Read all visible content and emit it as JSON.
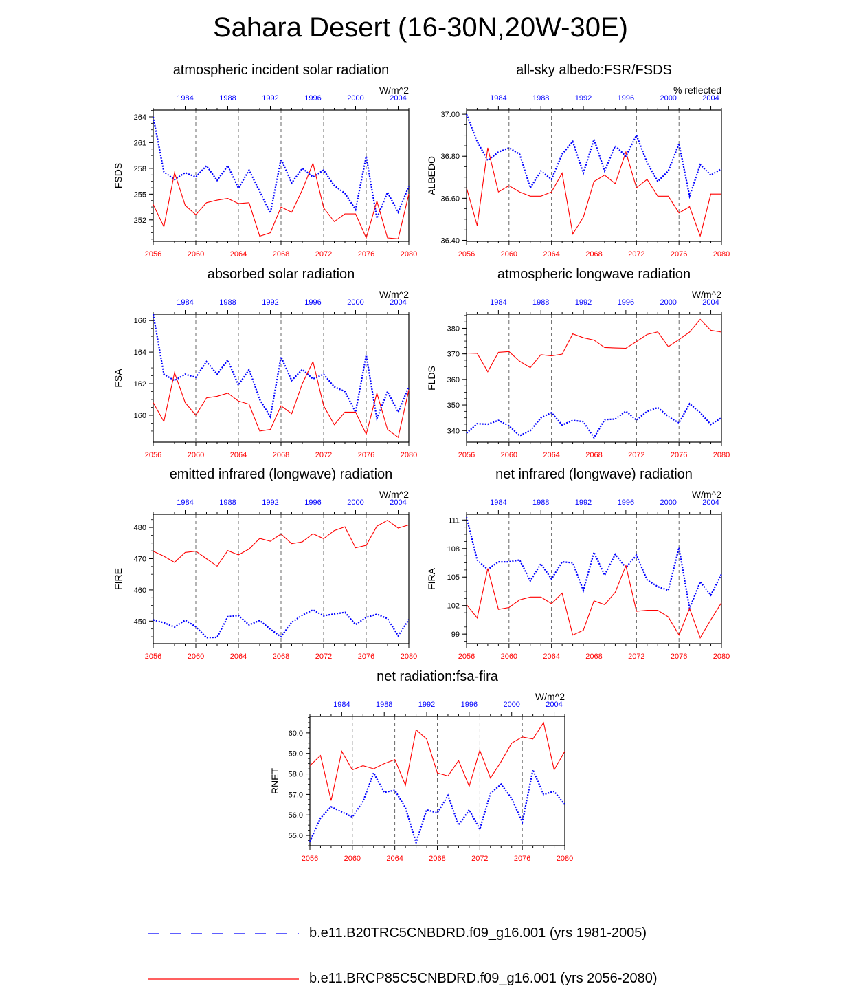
{
  "title": "Sahara Desert (16-30N,20W-30E)",
  "colors": {
    "hist": "#0000ff",
    "future": "#ff0000",
    "grid": "#444444"
  },
  "x_axis": {
    "top_ticks": [
      "1984",
      "1988",
      "1992",
      "1996",
      "2000",
      "2004"
    ],
    "top_years": [
      1984,
      1988,
      1992,
      1996,
      2000,
      2004
    ],
    "top_range": [
      1981,
      2005
    ],
    "bottom_ticks": [
      "2056",
      "2060",
      "2064",
      "2068",
      "2072",
      "2076",
      "2080"
    ],
    "bottom_years": [
      2056,
      2060,
      2064,
      2068,
      2072,
      2076,
      2080
    ],
    "bottom_range": [
      2056,
      2080
    ],
    "dashed_lines": [
      2060,
      2064,
      2068,
      2072,
      2076
    ]
  },
  "legend": [
    {
      "label": "b.e11.B20TRC5CNBDRD.f09_g16.001 (yrs 1981-2005)",
      "style": "dashed",
      "color": "#0000ff"
    },
    {
      "label": "b.e11.BRCP85C5CNBDRD.f09_g16.001 (yrs 2056-2080)",
      "style": "solid",
      "color": "#ff0000"
    }
  ],
  "chart_data": [
    {
      "type": "line",
      "title": "atmospheric incident solar radiation",
      "ylabel": "FSDS",
      "units": "W/m^2",
      "ylim": [
        249.5,
        264.8
      ],
      "yticks": [
        252,
        255,
        258,
        261,
        264
      ],
      "yticklabels": [
        "252",
        "255",
        "258",
        "261",
        "264"
      ],
      "series": [
        {
          "name": "b.e11.B20TRC5CNBDRD.f09_g16.001 (yrs 1981-2005)",
          "values": [
            264.0,
            257.6,
            256.7,
            257.5,
            257.0,
            258.3,
            256.6,
            258.3,
            255.7,
            257.8,
            255.3,
            252.8,
            259.1,
            256.3,
            258.0,
            257.0,
            257.8,
            256.0,
            255.1,
            253.2,
            259.4,
            252.2,
            255.2,
            252.9,
            255.9
          ]
        },
        {
          "name": "b.e11.BRCP85C5CNBDRD.f09_g16.001 (yrs 2056-2080)",
          "values": [
            253.8,
            251.2,
            257.5,
            253.7,
            252.6,
            254.0,
            254.3,
            254.5,
            253.9,
            254.0,
            250.1,
            250.5,
            253.5,
            252.9,
            255.5,
            258.6,
            253.4,
            251.8,
            252.7,
            252.7,
            249.9,
            254.2,
            249.9,
            249.8,
            255.0
          ]
        }
      ]
    },
    {
      "type": "line",
      "title": "all-sky albedo:FSR/FSDS",
      "ylabel": "ALBEDO",
      "units": "% reflected",
      "ylim": [
        36.395,
        37.02
      ],
      "yticks": [
        36.4,
        36.6,
        36.8,
        37.0
      ],
      "yticklabels": [
        "36.40",
        "36.60",
        "36.80",
        "37.00"
      ],
      "series": [
        {
          "name": "b.e11.B20TRC5CNBDRD.f09_g16.001 (yrs 1981-2005)",
          "values": [
            37.0,
            36.87,
            36.78,
            36.82,
            36.84,
            36.81,
            36.65,
            36.73,
            36.69,
            36.81,
            36.87,
            36.72,
            36.88,
            36.73,
            36.85,
            36.8,
            36.9,
            36.77,
            36.68,
            36.73,
            36.86,
            36.61,
            36.76,
            36.71,
            36.74
          ]
        },
        {
          "name": "b.e11.BRCP85C5CNBDRD.f09_g16.001 (yrs 2056-2080)",
          "values": [
            36.65,
            36.47,
            36.84,
            36.63,
            36.66,
            36.63,
            36.61,
            36.61,
            36.63,
            36.72,
            36.43,
            36.51,
            36.68,
            36.71,
            36.67,
            36.82,
            36.65,
            36.69,
            36.61,
            36.61,
            36.53,
            36.56,
            36.42,
            36.62,
            36.62
          ]
        }
      ]
    },
    {
      "type": "line",
      "title": "absorbed solar radiation",
      "ylabel": "FSA",
      "units": "W/m^2",
      "ylim": [
        158.3,
        166.4
      ],
      "yticks": [
        160,
        162,
        164,
        166
      ],
      "yticklabels": [
        "160",
        "162",
        "164",
        "166"
      ],
      "series": [
        {
          "name": "b.e11.B20TRC5CNBDRD.f09_g16.001 (yrs 1981-2005)",
          "values": [
            166.4,
            162.6,
            162.2,
            162.6,
            162.4,
            163.4,
            162.6,
            163.5,
            161.9,
            162.9,
            161.0,
            159.9,
            163.7,
            162.2,
            162.9,
            162.3,
            162.6,
            161.8,
            161.5,
            160.2,
            163.8,
            159.8,
            161.5,
            160.2,
            161.8
          ]
        },
        {
          "name": "b.e11.BRCP85C5CNBDRD.f09_g16.001 (yrs 2056-2080)",
          "values": [
            160.8,
            159.6,
            162.7,
            160.8,
            160.0,
            161.1,
            161.2,
            161.4,
            160.9,
            160.7,
            159.0,
            159.1,
            160.6,
            160.1,
            162.0,
            163.4,
            160.6,
            159.4,
            160.2,
            160.2,
            158.8,
            161.4,
            159.1,
            158.6,
            161.6
          ]
        }
      ]
    },
    {
      "type": "line",
      "title": "atmospheric longwave radiation",
      "ylabel": "FLDS",
      "units": "W/m^2",
      "ylim": [
        335.5,
        385.5
      ],
      "yticks": [
        340,
        350,
        360,
        370,
        380
      ],
      "yticklabels": [
        "340",
        "350",
        "360",
        "370",
        "380"
      ],
      "series": [
        {
          "name": "b.e11.B20TRC5CNBDRD.f09_g16.001 (yrs 1981-2005)",
          "values": [
            339.0,
            342.7,
            342.5,
            344.0,
            341.9,
            338.0,
            340.0,
            345.0,
            347.0,
            342.2,
            344.0,
            343.5,
            337.2,
            344.3,
            344.5,
            347.6,
            344.1,
            347.5,
            349.0,
            345.5,
            343.0,
            350.5,
            347.0,
            342.4,
            345.0
          ]
        },
        {
          "name": "b.e11.BRCP85C5CNBDRD.f09_g16.001 (yrs 2056-2080)",
          "values": [
            370.3,
            370.2,
            363.0,
            370.6,
            370.9,
            367.1,
            364.6,
            369.7,
            369.2,
            369.9,
            377.8,
            376.3,
            375.4,
            372.5,
            372.3,
            372.2,
            374.8,
            377.6,
            378.6,
            372.8,
            375.6,
            378.5,
            383.5,
            379.2,
            378.5
          ]
        }
      ]
    },
    {
      "type": "line",
      "title": "emitted infrared (longwave) radiation",
      "ylabel": "FIRE",
      "units": "W/m^2",
      "ylim": [
        442.8,
        484.2
      ],
      "yticks": [
        450,
        460,
        470,
        480
      ],
      "yticklabels": [
        "450",
        "460",
        "470",
        "480"
      ],
      "series": [
        {
          "name": "b.e11.B20TRC5CNBDRD.f09_g16.001 (yrs 1981-2005)",
          "values": [
            450.4,
            449.5,
            448.1,
            450.3,
            448.2,
            444.7,
            444.8,
            451.4,
            451.8,
            448.8,
            450.2,
            447.4,
            445.0,
            449.6,
            451.9,
            453.6,
            451.7,
            452.3,
            452.8,
            448.9,
            451.2,
            452.2,
            450.8,
            445.3,
            450.5
          ]
        },
        {
          "name": "b.e11.BRCP85C5CNBDRD.f09_g16.001 (yrs 2056-2080)",
          "values": [
            472.4,
            470.8,
            468.8,
            472.0,
            472.4,
            470.0,
            467.6,
            472.6,
            471.2,
            473.1,
            476.5,
            475.6,
            477.9,
            474.8,
            475.4,
            478.0,
            476.4,
            479.0,
            480.2,
            473.5,
            474.3,
            480.4,
            482.3,
            479.8,
            480.8
          ]
        }
      ]
    },
    {
      "type": "line",
      "title": "net infrared (longwave) radiation",
      "ylabel": "FIRA",
      "units": "W/m^2",
      "ylim": [
        98.0,
        111.6
      ],
      "yticks": [
        99,
        102,
        105,
        108,
        111
      ],
      "yticklabels": [
        "99",
        "102",
        "105",
        "108",
        "111"
      ],
      "series": [
        {
          "name": "b.e11.B20TRC5CNBDRD.f09_g16.001 (yrs 1981-2005)",
          "values": [
            111.3,
            106.8,
            105.8,
            106.6,
            106.6,
            106.8,
            104.6,
            106.4,
            104.8,
            106.6,
            106.5,
            103.6,
            107.6,
            105.2,
            107.4,
            106.0,
            107.3,
            104.7,
            104.0,
            103.6,
            108.1,
            101.7,
            104.5,
            103.1,
            105.3
          ]
        },
        {
          "name": "b.e11.BRCP85C5CNBDRD.f09_g16.001 (yrs 2056-2080)",
          "values": [
            102.1,
            100.7,
            105.9,
            101.6,
            101.8,
            102.6,
            102.9,
            102.9,
            102.2,
            103.3,
            98.9,
            99.4,
            102.5,
            102.1,
            103.4,
            106.2,
            101.4,
            101.5,
            101.5,
            100.8,
            98.9,
            101.7,
            98.6,
            100.5,
            102.3
          ]
        }
      ]
    },
    {
      "type": "line",
      "title": "net radiation:fsa-fira",
      "ylabel": "RNET",
      "units": "W/m^2",
      "ylim": [
        54.5,
        60.8
      ],
      "yticks": [
        55.0,
        56.0,
        57.0,
        58.0,
        59.0,
        60.0
      ],
      "yticklabels": [
        "55.0",
        "56.0",
        "57.0",
        "58.0",
        "59.0",
        "60.0"
      ],
      "series": [
        {
          "name": "b.e11.B20TRC5CNBDRD.f09_g16.001 (yrs 1981-2005)",
          "values": [
            54.7,
            55.85,
            56.4,
            56.15,
            55.9,
            56.65,
            58.05,
            57.1,
            57.2,
            56.35,
            54.65,
            56.25,
            56.1,
            56.95,
            55.5,
            56.25,
            55.3,
            57.05,
            57.5,
            56.8,
            55.65,
            58.2,
            57.0,
            57.15,
            56.5
          ]
        },
        {
          "name": "b.e11.BRCP85C5CNBDRD.f09_g16.001 (yrs 2056-2080)",
          "values": [
            58.4,
            58.9,
            56.7,
            59.1,
            58.2,
            58.4,
            58.25,
            58.5,
            58.7,
            57.45,
            60.15,
            59.7,
            58.05,
            57.9,
            58.65,
            57.4,
            59.15,
            57.8,
            58.6,
            59.5,
            59.8,
            59.7,
            60.5,
            58.2,
            59.1
          ]
        }
      ]
    }
  ]
}
